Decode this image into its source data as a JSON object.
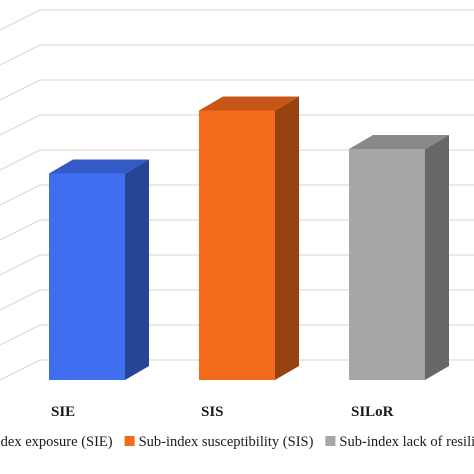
{
  "chart_data": {
    "type": "bar",
    "categories": [
      "SIE",
      "SIS",
      "SILoR"
    ],
    "series": [
      {
        "name": "Sub-index exposure (SIE)",
        "category": "SIE",
        "value": 0.59,
        "color": "#3f6ff0"
      },
      {
        "name": "Sub-index susceptibility (SIS)",
        "category": "SIS",
        "value": 0.77,
        "color": "#f26a1b"
      },
      {
        "name": "Sub-index lack of resilience (SILoR)",
        "category": "SILoR",
        "value": 0.66,
        "color": "#a4a7a6"
      }
    ],
    "ylim": [
      0,
      1
    ],
    "grid": true,
    "three_d": true,
    "legend_position": "bottom",
    "title": "",
    "xlabel": "",
    "ylabel": ""
  }
}
